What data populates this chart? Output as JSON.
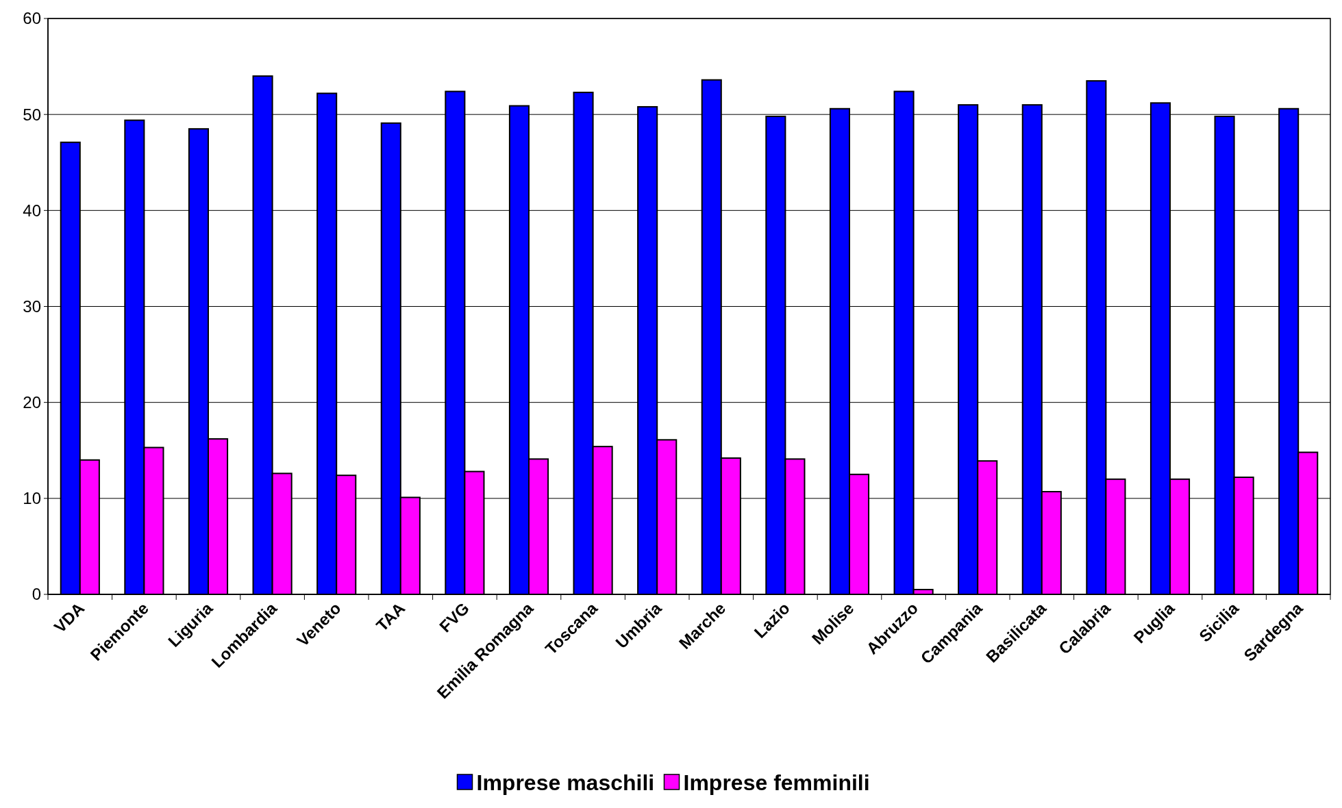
{
  "chart_data": {
    "type": "bar",
    "categories": [
      "VDA",
      "Piemonte",
      "Liguria",
      "Lombardia",
      "Veneto",
      "TAA",
      "FVG",
      "Emilia Romagna",
      "Toscana",
      "Umbria",
      "Marche",
      "Lazio",
      "Molise",
      "Abruzzo",
      "Campania",
      "Basilicata",
      "Calabria",
      "Puglia",
      "Sicilia",
      "Sardegna"
    ],
    "series": [
      {
        "name": "Imprese maschili",
        "color": "#0000ff",
        "values": [
          47.1,
          49.4,
          48.5,
          54.0,
          52.2,
          49.1,
          52.4,
          50.9,
          52.3,
          50.8,
          53.6,
          49.8,
          50.6,
          52.4,
          51.0,
          51.0,
          53.5,
          51.2,
          49.8,
          50.6
        ]
      },
      {
        "name": "Imprese femminili",
        "color": "#ff00ff",
        "values": [
          14.0,
          15.3,
          16.2,
          12.6,
          12.4,
          10.1,
          12.8,
          14.1,
          15.4,
          16.1,
          14.2,
          14.1,
          12.5,
          0.5,
          13.9,
          10.7,
          12.0,
          12.0,
          12.2,
          14.8
        ]
      }
    ],
    "ylim": [
      0,
      60
    ],
    "yticks": [
      0,
      10,
      20,
      30,
      40,
      50,
      60
    ],
    "grid": "y",
    "legend": "bottom"
  }
}
